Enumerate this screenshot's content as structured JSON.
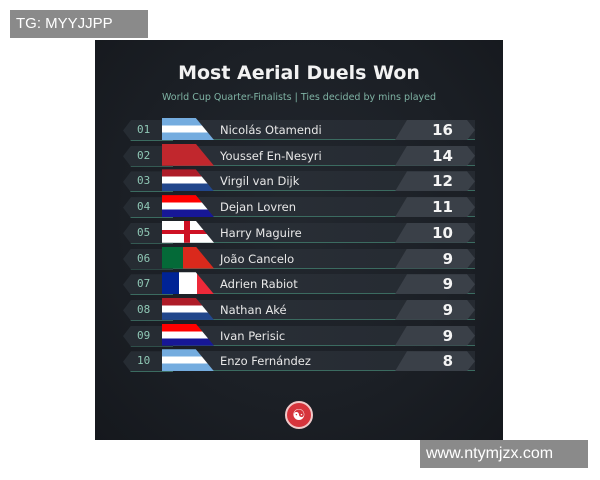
{
  "watermarks": {
    "top_left": "TG: MYYJJPP",
    "bottom_right": "www.ntymjzx.com"
  },
  "chart_data": {
    "type": "table",
    "title": "Most Aerial Duels Won",
    "subtitle": "World Cup Quarter-Finalists | Ties decided by mins played",
    "rows": [
      {
        "rank": "01",
        "country": "argentina",
        "name": "Nicolás Otamendi",
        "value": 16
      },
      {
        "rank": "02",
        "country": "morocco",
        "name": "Youssef En-Nesyri",
        "value": 14
      },
      {
        "rank": "03",
        "country": "netherlands",
        "name": "Virgil van Dijk",
        "value": 12
      },
      {
        "rank": "04",
        "country": "croatia",
        "name": "Dejan Lovren",
        "value": 11
      },
      {
        "rank": "05",
        "country": "england",
        "name": "Harry Maguire",
        "value": 10
      },
      {
        "rank": "06",
        "country": "portugal",
        "name": "João Cancelo",
        "value": 9
      },
      {
        "rank": "07",
        "country": "france",
        "name": "Adrien Rabiot",
        "value": 9
      },
      {
        "rank": "08",
        "country": "netherlands",
        "name": "Nathan Aké",
        "value": 9
      },
      {
        "rank": "09",
        "country": "croatia",
        "name": "Ivan Perisic",
        "value": 9
      },
      {
        "rank": "10",
        "country": "argentina",
        "name": "Enzo Fernández",
        "value": 8
      }
    ]
  },
  "colors": {
    "background": "#1b1f25",
    "accent": "#7fb3a4",
    "logo": "#d6343c"
  },
  "logo_icon": "brand-swirl-icon"
}
